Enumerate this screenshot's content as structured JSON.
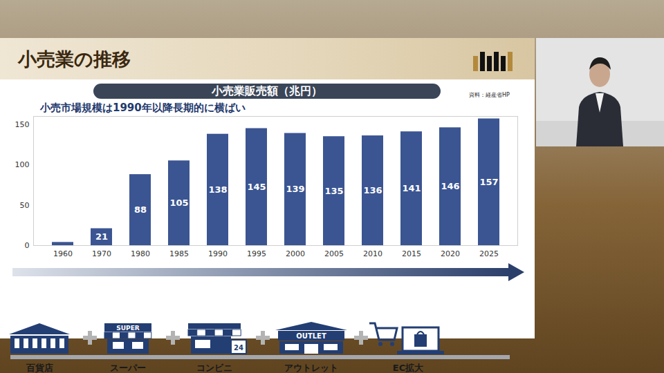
{
  "slide_title": "小売業の推移",
  "source": "資料：経産省HP",
  "timeline": [
    {
      "label": "百貨店"
    },
    {
      "label": "スーパー",
      "icon_text": "SUPER"
    },
    {
      "label": "コンビニ",
      "icon_text": "24"
    },
    {
      "label": "アウトレット",
      "icon_text": "OUTLET"
    },
    {
      "label": "EC拡大"
    }
  ],
  "chart_data": {
    "type": "bar",
    "title": "小売業販売額（兆円）",
    "subtitle": "小売市場規模は1990年以降長期的に横ばい",
    "categories": [
      "1960",
      "1970",
      "1980",
      "1985",
      "1990",
      "1995",
      "2000",
      "2005",
      "2010",
      "2015",
      "2020",
      "2025"
    ],
    "values": [
      4,
      21,
      88,
      105,
      138,
      145,
      139,
      135,
      136,
      141,
      146,
      157
    ],
    "value_labels": [
      null,
      "21",
      "88",
      "105",
      "138",
      "145",
      "139",
      "135",
      "136",
      "141",
      "146",
      "157"
    ],
    "color": "#3b5592",
    "ylim": [
      0,
      160
    ],
    "yticks": [
      0,
      50,
      100,
      150
    ],
    "grid": false,
    "data_labels": true
  }
}
